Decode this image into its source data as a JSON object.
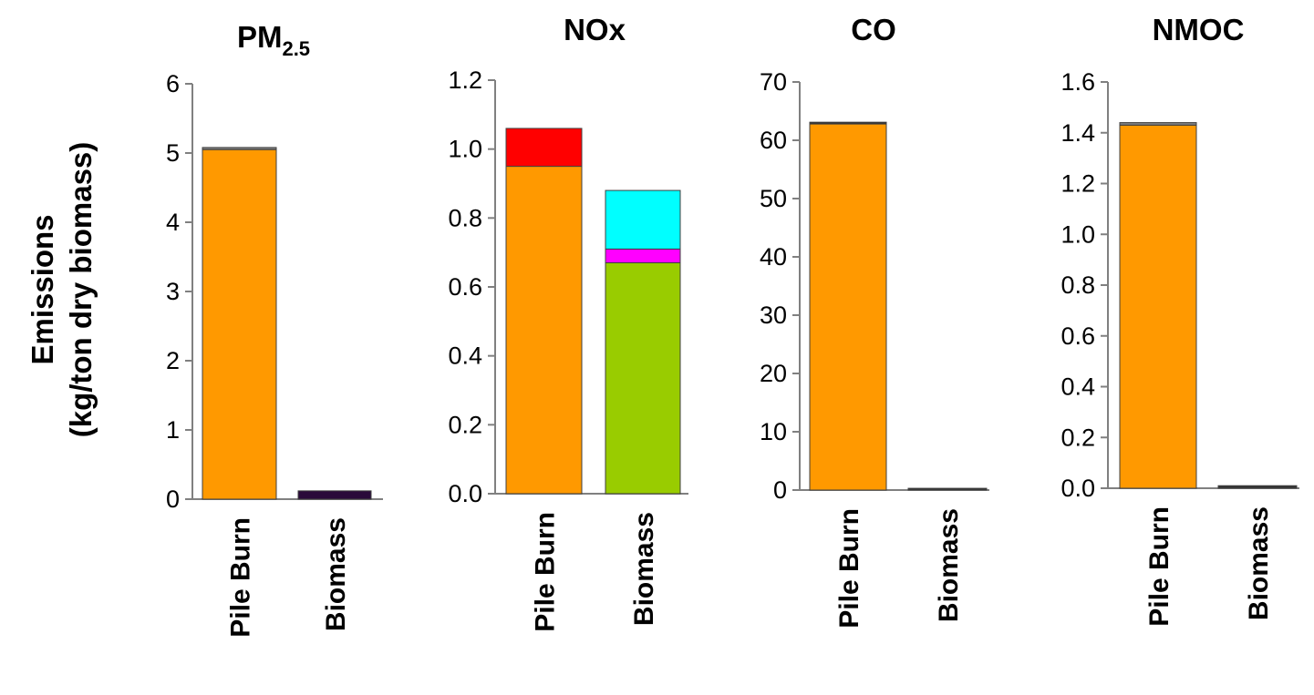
{
  "ylabel_line1": "Emissions",
  "ylabel_line2": "(kg/ton dry biomass)",
  "chart_data": [
    {
      "type": "bar",
      "stacked": true,
      "title": "PM",
      "title_subscript": "2.5",
      "categories": [
        "Pile Burn",
        "Biomass"
      ],
      "ylim": [
        0,
        6
      ],
      "yticks": [
        "0",
        "1",
        "2",
        "3",
        "4",
        "5",
        "6"
      ],
      "series": [
        {
          "color": "#FF9900",
          "values": [
            5.05,
            0
          ]
        },
        {
          "color": "#7F7F7F",
          "values": [
            0.03,
            0
          ]
        },
        {
          "color": "#2A0A3A",
          "values": [
            0,
            0.12
          ]
        }
      ]
    },
    {
      "type": "bar",
      "stacked": true,
      "title": "NOx",
      "categories": [
        "Pile Burn",
        "Biomass"
      ],
      "ylim": [
        0,
        1.2
      ],
      "yticks": [
        "0.0",
        "0.2",
        "0.4",
        "0.6",
        "0.8",
        "1.0",
        "1.2"
      ],
      "series": [
        {
          "color": "#FF9900",
          "values": [
            0.95,
            0
          ]
        },
        {
          "color": "#FF0000",
          "values": [
            0.11,
            0
          ]
        },
        {
          "color": "#99CC00",
          "values": [
            0,
            0.67
          ]
        },
        {
          "color": "#FF00FF",
          "values": [
            0,
            0.04
          ]
        },
        {
          "color": "#00FFFF",
          "values": [
            0,
            0.17
          ]
        }
      ]
    },
    {
      "type": "bar",
      "stacked": true,
      "title": "CO",
      "categories": [
        "Pile Burn",
        "Biomass"
      ],
      "ylim": [
        0,
        70
      ],
      "yticks": [
        "0",
        "10",
        "20",
        "30",
        "40",
        "50",
        "60",
        "70"
      ],
      "series": [
        {
          "color": "#FF9900",
          "values": [
            62.8,
            0
          ]
        },
        {
          "color": "#333333",
          "values": [
            0.3,
            0.3
          ]
        }
      ]
    },
    {
      "type": "bar",
      "stacked": true,
      "title": "NMOC",
      "categories": [
        "Pile Burn",
        "Biomass"
      ],
      "ylim": [
        0,
        1.6
      ],
      "yticks": [
        "0.0",
        "0.2",
        "0.4",
        "0.6",
        "0.8",
        "1.0",
        "1.2",
        "1.4",
        "1.6"
      ],
      "series": [
        {
          "color": "#FF9900",
          "values": [
            1.43,
            0
          ]
        },
        {
          "color": "#7F7F7F",
          "values": [
            0.01,
            0
          ]
        },
        {
          "color": "#333333",
          "values": [
            0,
            0.01
          ]
        }
      ]
    }
  ]
}
